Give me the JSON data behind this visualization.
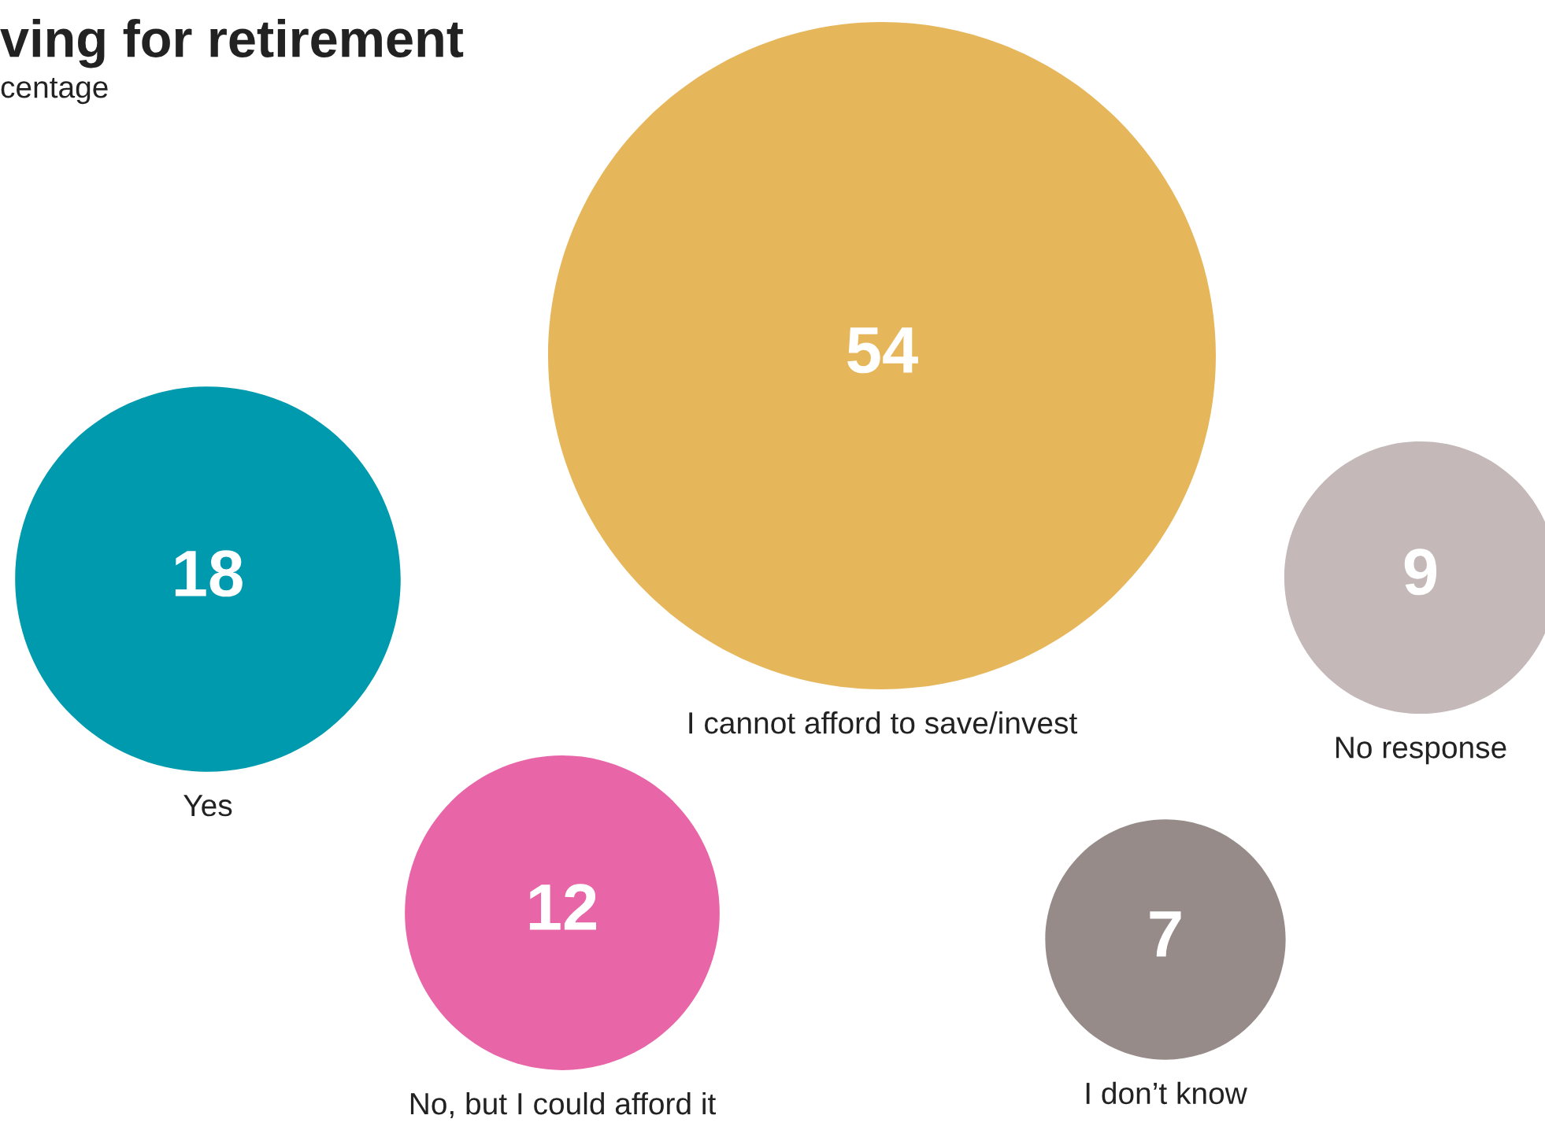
{
  "chart_data": {
    "type": "other",
    "title": "ving for retirement",
    "subtitle": "centage",
    "categories": [
      "Yes",
      "I cannot afford to save/invest",
      "No response",
      "No, but I could afford it",
      "I don’t know"
    ],
    "values": [
      18,
      54,
      9,
      12,
      7
    ],
    "colors": [
      "#009aae",
      "#e6b65a",
      "#c4b8b8",
      "#e865a7",
      "#968b88"
    ],
    "data_labels": true
  }
}
